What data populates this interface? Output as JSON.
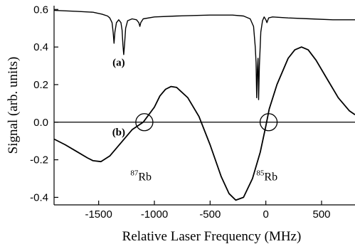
{
  "chart_data": {
    "type": "line",
    "xlabel": "Relative Laser Frequency (MHz)",
    "ylabel": "Signal (arb. units)",
    "xlim": [
      -1900,
      800
    ],
    "ylim": [
      -0.44,
      0.62
    ],
    "x_ticks": [
      -1500,
      -1000,
      -500,
      0,
      500
    ],
    "x_tick_labels": [
      "-1500",
      "-1000",
      "-500",
      "0",
      "500"
    ],
    "y_ticks": [
      -0.4,
      -0.2,
      0.0,
      0.2,
      0.4,
      0.6
    ],
    "y_tick_labels": [
      "-0.4",
      "-0.2",
      "0.0",
      "0.2",
      "0.4",
      "0.6"
    ],
    "grid": false,
    "zero_line": true,
    "series": [
      {
        "name": "(a)",
        "description_points": [
          [
            -1900,
            0.595
          ],
          [
            -1700,
            0.59
          ],
          [
            -1550,
            0.585
          ],
          [
            -1470,
            0.575
          ],
          [
            -1420,
            0.565
          ],
          [
            -1400,
            0.555
          ],
          [
            -1380,
            0.53
          ],
          [
            -1370,
            0.48
          ],
          [
            -1362,
            0.42
          ],
          [
            -1354,
            0.48
          ],
          [
            -1340,
            0.53
          ],
          [
            -1320,
            0.545
          ],
          [
            -1300,
            0.53
          ],
          [
            -1290,
            0.49
          ],
          [
            -1282,
            0.41
          ],
          [
            -1275,
            0.36
          ],
          [
            -1268,
            0.41
          ],
          [
            -1258,
            0.5
          ],
          [
            -1240,
            0.54
          ],
          [
            -1200,
            0.55
          ],
          [
            -1160,
            0.545
          ],
          [
            -1140,
            0.53
          ],
          [
            -1130,
            0.51
          ],
          [
            -1122,
            0.53
          ],
          [
            -1100,
            0.55
          ],
          [
            -1000,
            0.56
          ],
          [
            -800,
            0.565
          ],
          [
            -500,
            0.57
          ],
          [
            -300,
            0.57
          ],
          [
            -200,
            0.565
          ],
          [
            -140,
            0.55
          ],
          [
            -110,
            0.51
          ],
          [
            -95,
            0.4
          ],
          [
            -88,
            0.32
          ],
          [
            -82,
            0.13
          ],
          [
            -76,
            0.28
          ],
          [
            -70,
            0.34
          ],
          [
            -65,
            0.12
          ],
          [
            -58,
            0.3
          ],
          [
            -45,
            0.48
          ],
          [
            -30,
            0.54
          ],
          [
            -15,
            0.56
          ],
          [
            0,
            0.545
          ],
          [
            10,
            0.53
          ],
          [
            25,
            0.555
          ],
          [
            60,
            0.56
          ],
          [
            200,
            0.555
          ],
          [
            400,
            0.55
          ],
          [
            600,
            0.545
          ],
          [
            800,
            0.545
          ]
        ]
      },
      {
        "name": "(b)",
        "description_points": [
          [
            -1900,
            -0.09
          ],
          [
            -1800,
            -0.12
          ],
          [
            -1700,
            -0.155
          ],
          [
            -1600,
            -0.19
          ],
          [
            -1550,
            -0.205
          ],
          [
            -1480,
            -0.21
          ],
          [
            -1400,
            -0.18
          ],
          [
            -1300,
            -0.11
          ],
          [
            -1200,
            -0.04
          ],
          [
            -1100,
            0.0
          ],
          [
            -1000,
            0.08
          ],
          [
            -950,
            0.14
          ],
          [
            -900,
            0.175
          ],
          [
            -850,
            0.19
          ],
          [
            -800,
            0.185
          ],
          [
            -700,
            0.13
          ],
          [
            -600,
            0.03
          ],
          [
            -500,
            -0.12
          ],
          [
            -400,
            -0.29
          ],
          [
            -330,
            -0.38
          ],
          [
            -270,
            -0.415
          ],
          [
            -200,
            -0.4
          ],
          [
            -120,
            -0.3
          ],
          [
            -50,
            -0.16
          ],
          [
            0,
            -0.02
          ],
          [
            30,
            0.07
          ],
          [
            100,
            0.2
          ],
          [
            200,
            0.34
          ],
          [
            260,
            0.385
          ],
          [
            320,
            0.4
          ],
          [
            380,
            0.385
          ],
          [
            450,
            0.33
          ],
          [
            550,
            0.23
          ],
          [
            650,
            0.13
          ],
          [
            750,
            0.06
          ],
          [
            800,
            0.04
          ]
        ]
      }
    ],
    "markers": [
      {
        "shape": "circle",
        "x": -1090,
        "y": 0.0
      },
      {
        "shape": "circle",
        "x": 25,
        "y": 0.0
      }
    ],
    "annotations": [
      {
        "text": "(a)",
        "x": -1320,
        "y": 0.3
      },
      {
        "text": "(b)",
        "x": -1320,
        "y": -0.07
      },
      {
        "sup": "87",
        "text": "Rb",
        "x": -1120,
        "y": -0.31
      },
      {
        "sup": "85",
        "text": "Rb",
        "x": 10,
        "y": -0.31
      }
    ]
  }
}
